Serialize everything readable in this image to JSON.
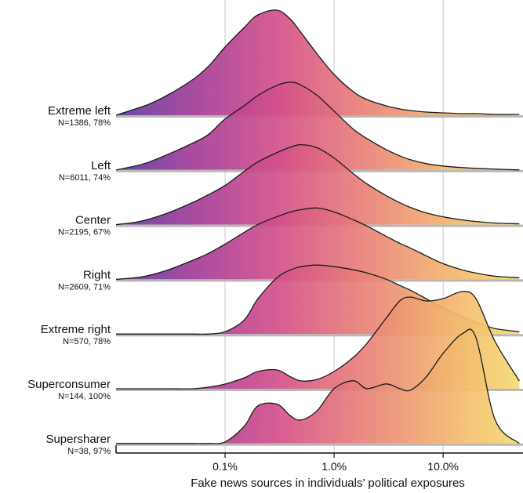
{
  "chart_data": {
    "type": "ridgeline",
    "xlabel": "Fake news sources in individuals’ political exposures",
    "xscale": "log",
    "xlim": [
      0.01,
      54
    ],
    "xticks": [
      {
        "value": 0.1,
        "label": "0.1%"
      },
      {
        "value": 1,
        "label": "1.0%"
      },
      {
        "value": 10,
        "label": "10.0%"
      }
    ],
    "grid": true,
    "colors": [
      "#5b3a9c",
      "#a53d98",
      "#d4508a",
      "#e87f78",
      "#f2b06f",
      "#f5dc70"
    ],
    "line_color": "#1a1a1a",
    "x": [
      0.01,
      0.015,
      0.02,
      0.03,
      0.05,
      0.07,
      0.1,
      0.15,
      0.2,
      0.3,
      0.4,
      0.5,
      0.7,
      1,
      1.5,
      2,
      3,
      4,
      5,
      7,
      10,
      15,
      20,
      30,
      50
    ],
    "series": [
      {
        "name": "Extreme left",
        "label": "N=1386, 78%",
        "values": [
          0,
          8,
          14,
          26,
          45,
          62,
          87,
          112,
          128,
          134,
          122,
          105,
          78,
          52,
          30,
          20,
          12,
          8,
          6,
          4,
          3,
          2,
          2,
          1,
          1
        ]
      },
      {
        "name": "Left",
        "label": "N=6011, 74%",
        "values": [
          0,
          5,
          10,
          20,
          34,
          45,
          65,
          82,
          95,
          108,
          112,
          108,
          95,
          75,
          52,
          40,
          26,
          18,
          13,
          8,
          5,
          3,
          2,
          1,
          0
        ]
      },
      {
        "name": "Center",
        "label": "N=2195, 67%",
        "values": [
          0,
          3,
          7,
          15,
          28,
          38,
          50,
          68,
          80,
          92,
          99,
          102,
          98,
          85,
          65,
          52,
          37,
          28,
          22,
          15,
          10,
          6,
          4,
          2,
          1
        ]
      },
      {
        "name": "Right",
        "label": "N=2609, 71%",
        "values": [
          0,
          2,
          5,
          12,
          24,
          33,
          45,
          60,
          70,
          80,
          86,
          89,
          91,
          86,
          76,
          68,
          55,
          46,
          40,
          30,
          20,
          12,
          8,
          4,
          2
        ]
      },
      {
        "name": "Extreme right",
        "label": "N=570, 78%",
        "values": [
          0,
          0,
          0,
          0,
          0,
          0,
          3,
          18,
          45,
          72,
          82,
          86,
          88,
          86,
          82,
          78,
          70,
          62,
          56,
          45,
          33,
          22,
          15,
          7,
          3
        ]
      },
      {
        "name": "Superconsumer",
        "label": "N=144, 100%",
        "values": [
          0,
          0,
          0,
          0,
          0,
          2,
          6,
          14,
          22,
          24,
          15,
          10,
          12,
          22,
          40,
          58,
          90,
          112,
          117,
          112,
          115,
          124,
          115,
          60,
          10
        ]
      },
      {
        "name": "Supersharer",
        "label": "N=38, 97%",
        "values": [
          0,
          0,
          0,
          0,
          0,
          0,
          2,
          22,
          48,
          50,
          35,
          30,
          42,
          70,
          80,
          70,
          76,
          70,
          68,
          85,
          115,
          140,
          135,
          30,
          0
        ]
      }
    ]
  }
}
